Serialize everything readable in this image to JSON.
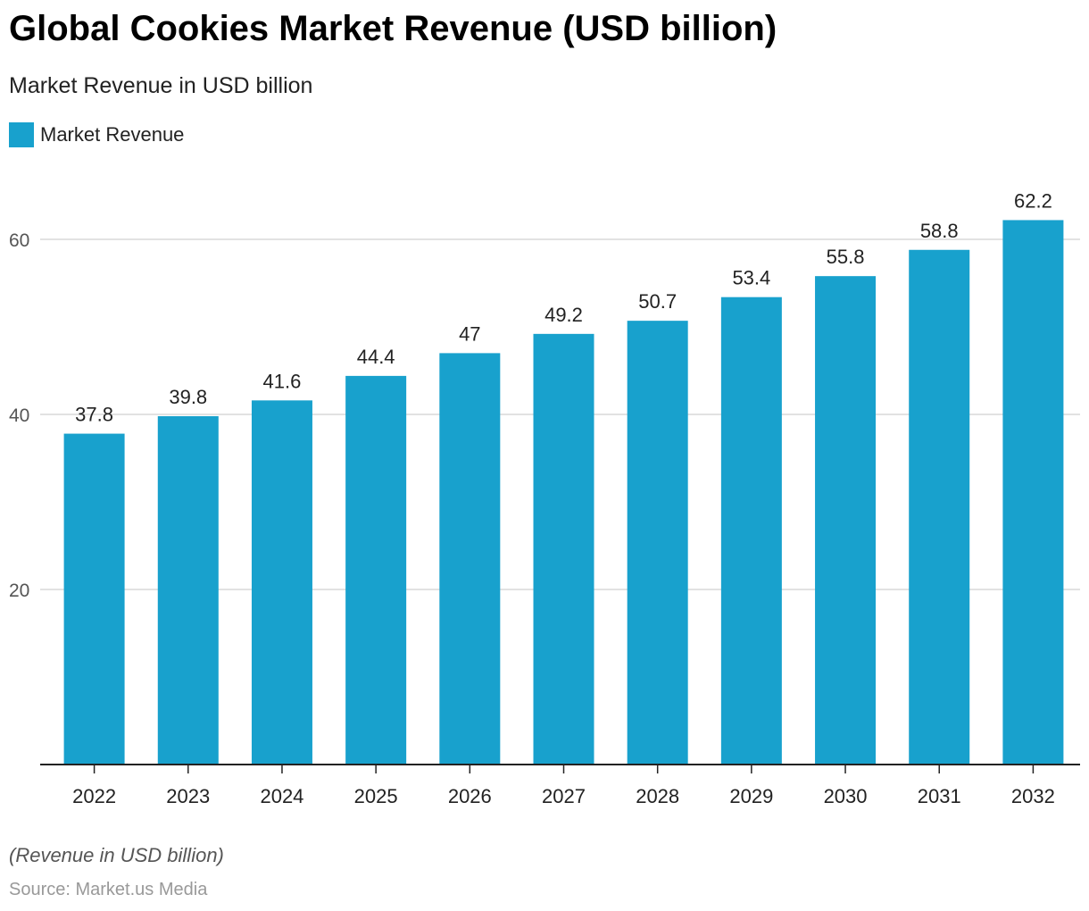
{
  "chart_data": {
    "type": "bar",
    "title": "Global Cookies Market Revenue (USD billion)",
    "subtitle": "Market Revenue in USD billion",
    "categories": [
      "2022",
      "2023",
      "2024",
      "2025",
      "2026",
      "2027",
      "2028",
      "2029",
      "2030",
      "2031",
      "2032"
    ],
    "series": [
      {
        "name": "Market Revenue",
        "values": [
          37.8,
          39.8,
          41.6,
          44.4,
          47,
          49.2,
          50.7,
          53.4,
          55.8,
          58.8,
          62.2
        ],
        "color": "#18a1cd"
      }
    ],
    "xlabel": "",
    "ylabel": "",
    "ylim": [
      0,
      60
    ],
    "yticks": [
      20,
      40,
      60
    ],
    "grid": true,
    "legend": "top-left",
    "data_labels": true
  },
  "footer": {
    "note": "(Revenue in USD billion)",
    "source": "Source: Market.us Media"
  }
}
